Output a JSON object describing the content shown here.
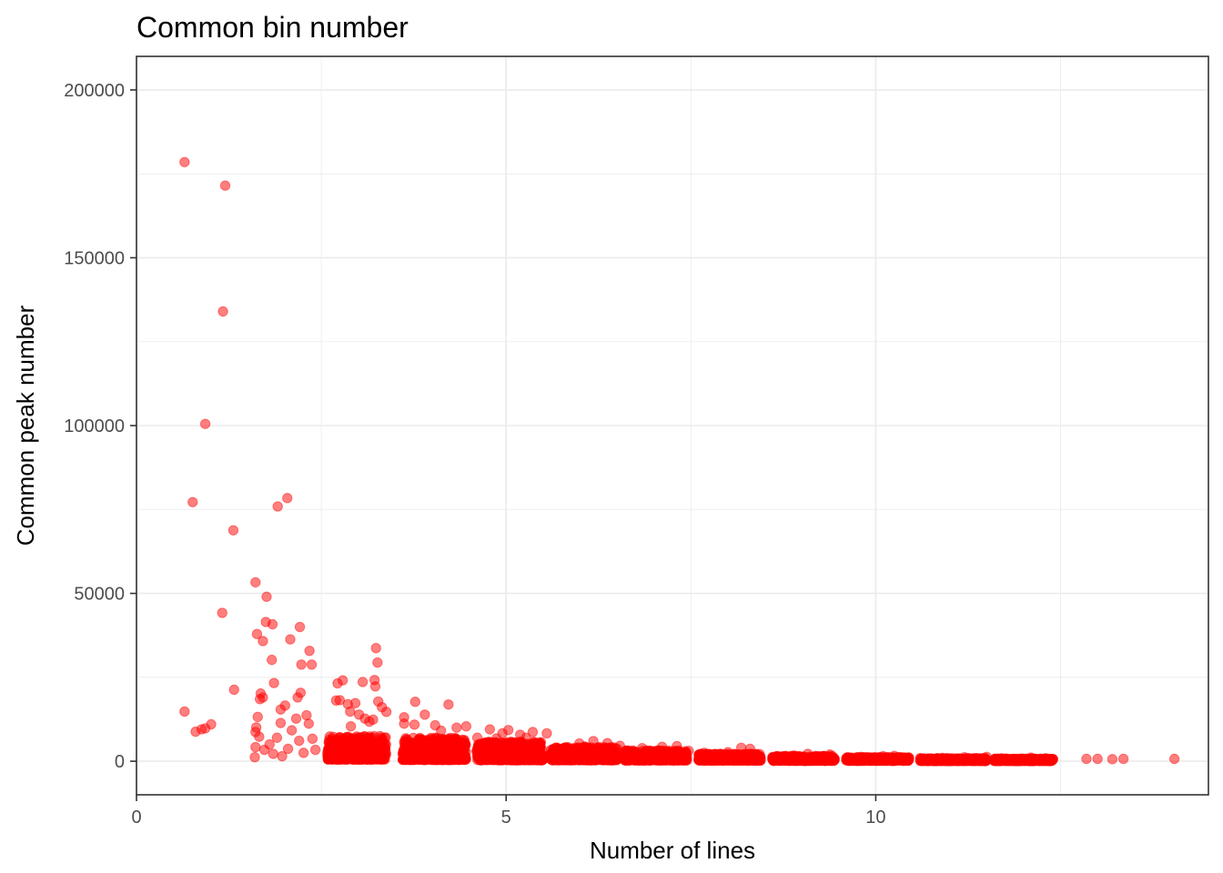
{
  "chart_data": {
    "type": "scatter",
    "title": "Common bin number",
    "xlabel": "Number of lines",
    "ylabel": "Common peak number",
    "xlim": [
      0,
      14.5
    ],
    "ylim": [
      -10000,
      210000
    ],
    "x_ticks": [
      0,
      5,
      10
    ],
    "x_tick_labels": [
      "0",
      "5",
      "10"
    ],
    "y_ticks": [
      0,
      50000,
      100000,
      150000,
      200000
    ],
    "y_tick_labels": [
      "0",
      "50000",
      "100000",
      "150000",
      "200000"
    ],
    "grid": true,
    "point_color": "#FF0000",
    "point_alpha": 0.5,
    "points": [
      [
        0.65,
        178500
      ],
      [
        1.2,
        171500
      ],
      [
        1.17,
        134000
      ],
      [
        0.93,
        100500
      ],
      [
        0.76,
        77200
      ],
      [
        1.31,
        68800
      ],
      [
        1.16,
        44200
      ],
      [
        1.32,
        21300
      ],
      [
        0.65,
        14800
      ],
      [
        0.8,
        8800
      ],
      [
        0.88,
        9500
      ],
      [
        0.93,
        9800
      ],
      [
        1.01,
        11000
      ],
      [
        1.61,
        53300
      ],
      [
        1.76,
        49000
      ],
      [
        1.75,
        41500
      ],
      [
        1.84,
        40800
      ],
      [
        1.63,
        37900
      ],
      [
        1.71,
        35800
      ],
      [
        1.83,
        30200
      ],
      [
        1.86,
        23300
      ],
      [
        1.71,
        19000
      ],
      [
        1.67,
        18500
      ],
      [
        1.68,
        20200
      ],
      [
        1.91,
        75900
      ],
      [
        2.04,
        78400
      ],
      [
        2.21,
        40000
      ],
      [
        2.08,
        36300
      ],
      [
        2.34,
        32900
      ],
      [
        2.23,
        28800
      ],
      [
        2.37,
        28800
      ],
      [
        2.22,
        20400
      ],
      [
        2.18,
        19000
      ],
      [
        2.01,
        16600
      ],
      [
        1.95,
        15400
      ],
      [
        2.3,
        13700
      ],
      [
        2.16,
        12700
      ],
      [
        1.95,
        11400
      ],
      [
        1.64,
        13200
      ],
      [
        1.62,
        10100
      ],
      [
        1.61,
        8700
      ],
      [
        1.66,
        7300
      ],
      [
        1.61,
        4200
      ],
      [
        1.6,
        1200
      ],
      [
        1.73,
        3400
      ],
      [
        1.8,
        5000
      ],
      [
        1.85,
        2200
      ],
      [
        1.9,
        7000
      ],
      [
        1.97,
        1500
      ],
      [
        2.05,
        3700
      ],
      [
        2.1,
        9200
      ],
      [
        2.2,
        6100
      ],
      [
        2.26,
        2500
      ],
      [
        2.33,
        11200
      ],
      [
        2.38,
        6700
      ],
      [
        2.42,
        3400
      ],
      [
        3.24,
        33700
      ],
      [
        3.26,
        29400
      ],
      [
        3.22,
        24200
      ],
      [
        3.23,
        22300
      ],
      [
        2.79,
        24100
      ],
      [
        2.72,
        23200
      ],
      [
        3.06,
        23600
      ],
      [
        3.27,
        17800
      ],
      [
        3.32,
        16100
      ],
      [
        2.86,
        17000
      ],
      [
        2.96,
        17300
      ],
      [
        2.89,
        14800
      ],
      [
        3.09,
        12700
      ],
      [
        3.38,
        14700
      ],
      [
        3.01,
        13900
      ],
      [
        2.7,
        18100
      ],
      [
        2.75,
        18200
      ],
      [
        3.15,
        11800
      ],
      [
        2.9,
        10400
      ],
      [
        3.2,
        12400
      ],
      [
        3.77,
        17700
      ],
      [
        4.22,
        16900
      ],
      [
        3.62,
        13100
      ],
      [
        3.9,
        13900
      ],
      [
        3.62,
        11200
      ],
      [
        4.33,
        10000
      ],
      [
        4.12,
        9100
      ],
      [
        3.76,
        10900
      ],
      [
        4.46,
        10400
      ],
      [
        4.04,
        10700
      ],
      [
        4.78,
        9500
      ],
      [
        5.03,
        9300
      ],
      [
        4.95,
        8300
      ],
      [
        5.36,
        8700
      ],
      [
        5.19,
        7900
      ],
      [
        5.55,
        8300
      ],
      [
        5.27,
        7000
      ],
      [
        4.61,
        7000
      ],
      [
        4.87,
        6800
      ],
      [
        6.18,
        6000
      ],
      [
        5.99,
        5300
      ],
      [
        6.37,
        5400
      ],
      [
        6.54,
        4600
      ],
      [
        6.06,
        4400
      ],
      [
        7.11,
        4300
      ],
      [
        7.31,
        4500
      ],
      [
        6.84,
        3900
      ],
      [
        7.47,
        3100
      ],
      [
        8.18,
        4000
      ],
      [
        8.3,
        3700
      ],
      [
        8.0,
        2700
      ],
      [
        7.68,
        2500
      ],
      [
        9.08,
        2200
      ],
      [
        9.38,
        2000
      ],
      [
        8.9,
        1700
      ],
      [
        10.1,
        1500
      ],
      [
        10.25,
        1600
      ],
      [
        9.8,
        1300
      ],
      [
        11.2,
        1200
      ],
      [
        11.5,
        1300
      ],
      [
        10.9,
        1000
      ],
      [
        12.1,
        1100
      ],
      [
        12.3,
        900
      ],
      [
        11.7,
        900
      ],
      [
        12.85,
        700
      ],
      [
        13.0,
        700
      ],
      [
        13.2,
        600
      ],
      [
        13.35,
        700
      ],
      [
        14.04,
        700
      ]
    ],
    "clusters": [
      {
        "x_range": [
          2.58,
          3.38
        ],
        "y_range": [
          500,
          7500
        ],
        "n": 520
      },
      {
        "x_range": [
          3.6,
          4.46
        ],
        "y_range": [
          400,
          7000
        ],
        "n": 560
      },
      {
        "x_range": [
          4.6,
          5.5
        ],
        "y_range": [
          300,
          5800
        ],
        "n": 580
      },
      {
        "x_range": [
          5.6,
          6.5
        ],
        "y_range": [
          300,
          4200
        ],
        "n": 560
      },
      {
        "x_range": [
          6.6,
          7.45
        ],
        "y_range": [
          250,
          3200
        ],
        "n": 520
      },
      {
        "x_range": [
          7.6,
          8.45
        ],
        "y_range": [
          200,
          2200
        ],
        "n": 480
      },
      {
        "x_range": [
          8.6,
          9.45
        ],
        "y_range": [
          150,
          1600
        ],
        "n": 440
      },
      {
        "x_range": [
          9.6,
          10.45
        ],
        "y_range": [
          150,
          1200
        ],
        "n": 420
      },
      {
        "x_range": [
          10.6,
          11.5
        ],
        "y_range": [
          100,
          900
        ],
        "n": 400
      },
      {
        "x_range": [
          11.6,
          12.4
        ],
        "y_range": [
          100,
          800
        ],
        "n": 360
      }
    ]
  }
}
